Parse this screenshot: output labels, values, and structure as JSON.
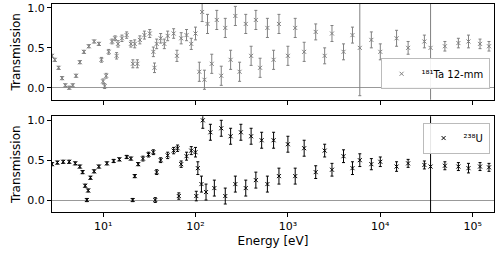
{
  "chart_data": [
    {
      "type": "scatter",
      "y_label": "Transmission",
      "log": "x",
      "grid": false,
      "legend": "lower right",
      "tick_labels": "y",
      "xlim": [
        2.8,
        170000
      ],
      "ylim": [
        -0.15,
        1.05
      ],
      "xticks": [
        {
          "value": 10,
          "label": "10¹"
        },
        {
          "value": 100,
          "label": "10²"
        },
        {
          "value": 1000,
          "label": "10³"
        },
        {
          "value": 10000,
          "label": "10⁴"
        },
        {
          "value": 100000,
          "label": "10⁵"
        }
      ],
      "yticks": [
        {
          "value": 0,
          "label": "0.0"
        },
        0.5,
        {
          "value": 1,
          "label": "1.0"
        }
      ],
      "x": [
        2.8,
        3.0,
        3.3,
        3.6,
        3.9,
        4.3,
        4.7,
        5.1,
        5.6,
        6.2,
        7.0,
        8.0,
        9.0,
        9.6,
        10.0,
        10.4,
        10.8,
        11.5,
        12.5,
        13.5,
        14.0,
        14.5,
        16,
        18,
        20,
        21,
        22,
        23.5,
        25,
        28,
        32,
        35,
        36,
        38,
        42,
        46,
        50,
        58,
        63,
        70,
        80,
        90,
        100,
        110,
        118,
        125,
        135,
        150,
        170,
        190,
        210,
        240,
        270,
        300,
        350,
        400,
        450,
        500,
        600,
        700,
        800,
        1000,
        1200,
        1500,
        2000,
        2500,
        3000,
        4000,
        5000,
        6000,
        8000,
        10000,
        15000,
        20000,
        30000,
        35000,
        50000,
        70000,
        90000,
        120000,
        150000
      ],
      "series": [
        {
          "name": "¹⁸¹Ta 12-mm",
          "color": "#808080",
          "marker": "x",
          "values": [
            0.4,
            0.35,
            0.25,
            0.12,
            0.03,
            0.0,
            0.03,
            0.15,
            0.32,
            0.45,
            0.52,
            0.58,
            0.55,
            0.35,
            0.08,
            0.02,
            0.15,
            0.45,
            0.58,
            0.62,
            0.4,
            0.55,
            0.62,
            0.66,
            0.55,
            0.3,
            0.55,
            0.3,
            0.6,
            0.66,
            0.68,
            0.45,
            0.25,
            0.55,
            0.62,
            0.55,
            0.65,
            0.68,
            0.4,
            0.62,
            0.66,
            0.55,
            0.68,
            0.2,
            0.95,
            0.1,
            0.8,
            0.3,
            0.85,
            0.15,
            0.75,
            0.35,
            0.9,
            0.2,
            0.8,
            0.4,
            0.85,
            0.25,
            0.75,
            0.35,
            0.8,
            0.4,
            0.75,
            0.45,
            0.7,
            0.4,
            0.68,
            0.45,
            0.66,
            0.5,
            0.6,
            0.45,
            0.62,
            0.5,
            0.58,
            0.5,
            0.52,
            0.56,
            0.58,
            0.55,
            0.52
          ],
          "errors": [
            0.02,
            0.02,
            0.02,
            0.02,
            0.02,
            0.02,
            0.02,
            0.02,
            0.02,
            0.02,
            0.02,
            0.02,
            0.02,
            0.03,
            0.03,
            0.03,
            0.03,
            0.03,
            0.03,
            0.03,
            0.04,
            0.04,
            0.04,
            0.04,
            0.04,
            0.05,
            0.05,
            0.05,
            0.05,
            0.05,
            0.05,
            0.06,
            0.06,
            0.06,
            0.06,
            0.06,
            0.06,
            0.06,
            0.07,
            0.07,
            0.07,
            0.07,
            0.08,
            0.12,
            0.12,
            0.12,
            0.12,
            0.12,
            0.12,
            0.12,
            0.12,
            0.12,
            0.12,
            0.12,
            0.12,
            0.12,
            0.12,
            0.12,
            0.12,
            0.12,
            0.12,
            0.12,
            0.12,
            0.12,
            0.1,
            0.1,
            0.1,
            0.1,
            0.1,
            0.6,
            0.1,
            0.1,
            0.1,
            0.08,
            0.08,
            0.7,
            0.06,
            0.06,
            0.08,
            0.06,
            0.06
          ]
        }
      ]
    },
    {
      "type": "scatter",
      "x_label": "Energy [eV]",
      "y_label": "Transmission",
      "log": "x",
      "grid": false,
      "legend": "upper right",
      "xlim": [
        2.8,
        170000
      ],
      "ylim": [
        -0.15,
        1.05
      ],
      "xticks": [
        {
          "value": 10,
          "label": "10¹"
        },
        {
          "value": 100,
          "label": "10²"
        },
        {
          "value": 1000,
          "label": "10³"
        },
        {
          "value": 10000,
          "label": "10⁴"
        },
        {
          "value": 100000,
          "label": "10⁵"
        }
      ],
      "yticks": [
        {
          "value": 0,
          "label": "0.0"
        },
        0.5,
        {
          "value": 1,
          "label": "1.0"
        }
      ],
      "x": [
        2.8,
        3.2,
        3.7,
        4.3,
        5.0,
        5.6,
        6.0,
        6.4,
        6.67,
        6.9,
        7.3,
        8.0,
        9.0,
        11,
        13,
        15,
        18,
        20,
        20.9,
        22,
        24,
        27,
        31,
        35,
        36.7,
        38,
        42,
        50,
        58,
        64,
        66,
        70,
        80,
        90,
        100,
        102,
        106,
        116,
        120,
        130,
        145,
        160,
        190,
        210,
        240,
        270,
        310,
        350,
        400,
        450,
        520,
        600,
        700,
        800,
        1000,
        1200,
        1500,
        2000,
        2500,
        3000,
        4000,
        5000,
        6000,
        8000,
        10000,
        15000,
        20000,
        30000,
        35000,
        50000,
        70000,
        90000,
        120000,
        150000
      ],
      "series": [
        {
          "name": "²³⁸U",
          "color": "#000000",
          "marker": "x",
          "values": [
            0.45,
            0.47,
            0.48,
            0.48,
            0.46,
            0.42,
            0.35,
            0.18,
            0.0,
            0.12,
            0.28,
            0.36,
            0.42,
            0.46,
            0.49,
            0.51,
            0.54,
            0.52,
            0.0,
            0.3,
            0.45,
            0.52,
            0.57,
            0.6,
            0.0,
            0.35,
            0.5,
            0.56,
            0.62,
            0.65,
            0.05,
            0.45,
            0.55,
            0.62,
            0.6,
            0.05,
            0.4,
            0.2,
            1.0,
            0.1,
            0.85,
            0.15,
            0.9,
            0.05,
            0.8,
            0.2,
            0.85,
            0.15,
            0.8,
            0.25,
            0.75,
            0.2,
            0.75,
            0.3,
            0.7,
            0.3,
            0.65,
            0.35,
            0.62,
            0.38,
            0.55,
            0.4,
            0.5,
            0.45,
            0.48,
            0.42,
            0.46,
            0.44,
            0.42,
            0.43,
            0.42,
            0.4,
            0.42,
            0.41
          ],
          "errors": [
            0.02,
            0.02,
            0.02,
            0.02,
            0.02,
            0.02,
            0.02,
            0.02,
            0.02,
            0.02,
            0.02,
            0.02,
            0.02,
            0.02,
            0.02,
            0.02,
            0.02,
            0.02,
            0.02,
            0.02,
            0.02,
            0.03,
            0.03,
            0.03,
            0.03,
            0.03,
            0.03,
            0.04,
            0.04,
            0.04,
            0.04,
            0.04,
            0.05,
            0.05,
            0.06,
            0.06,
            0.08,
            0.1,
            0.1,
            0.1,
            0.1,
            0.1,
            0.1,
            0.1,
            0.1,
            0.1,
            0.1,
            0.1,
            0.1,
            0.1,
            0.1,
            0.1,
            0.1,
            0.1,
            0.1,
            0.1,
            0.1,
            0.08,
            0.08,
            0.08,
            0.08,
            0.08,
            0.08,
            0.07,
            0.06,
            0.06,
            0.05,
            0.05,
            0.7,
            0.05,
            0.05,
            0.06,
            0.05,
            0.05
          ]
        }
      ]
    }
  ]
}
